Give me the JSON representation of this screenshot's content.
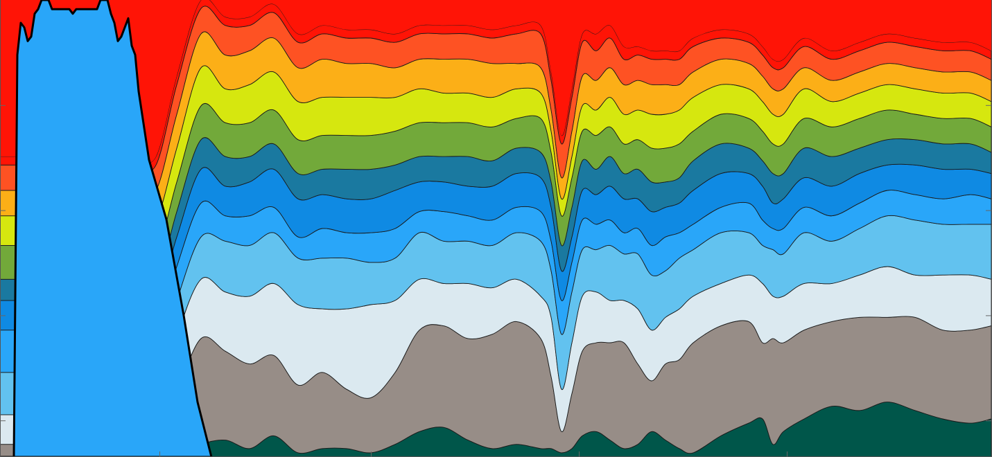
{
  "chart_data": {
    "type": "area",
    "stacked": true,
    "title": "",
    "xlabel": "",
    "ylabel": "",
    "xlim": [
      0,
      1430
    ],
    "ylim": [
      0,
      1
    ],
    "grid": false,
    "legend": "none",
    "x": [
      0,
      35,
      70,
      100,
      130,
      165,
      195,
      225,
      255,
      290,
      325,
      360,
      395,
      430,
      465,
      500,
      535,
      570,
      605,
      640,
      675,
      710,
      745,
      780,
      795,
      810,
      825,
      840,
      860,
      880,
      900,
      920,
      940,
      960,
      980,
      1000,
      1040,
      1080,
      1100,
      1115,
      1130,
      1160,
      1200,
      1240,
      1280,
      1320,
      1360,
      1400,
      1430
    ],
    "series": [
      {
        "name": "",
        "color": "#00564a",
        "values": [
          0,
          0,
          0,
          0,
          0,
          0,
          0,
          0,
          0,
          0.03,
          0.04,
          0.02,
          0.05,
          0.01,
          0.02,
          0.02,
          0.01,
          0.03,
          0.06,
          0.07,
          0.04,
          0.02,
          0.03,
          0.02,
          0.02,
          0.01,
          0.02,
          0.05,
          0.06,
          0.04,
          0.02,
          0.03,
          0.06,
          0.04,
          0.02,
          0.01,
          0.05,
          0.08,
          0.09,
          0.03,
          0.06,
          0.09,
          0.12,
          0.11,
          0.13,
          0.11,
          0.09,
          0.08,
          0.09
        ]
      },
      {
        "name": "",
        "color": "#978d87",
        "values": [
          0.03,
          0.03,
          0.03,
          0.03,
          0.03,
          0.03,
          0.03,
          0.02,
          0.15,
          0.25,
          0.21,
          0.2,
          0.19,
          0.16,
          0.18,
          0.14,
          0.13,
          0.17,
          0.24,
          0.24,
          0.24,
          0.27,
          0.29,
          0.26,
          0.17,
          0.05,
          0.13,
          0.2,
          0.21,
          0.23,
          0.25,
          0.19,
          0.12,
          0.18,
          0.21,
          0.26,
          0.26,
          0.24,
          0.18,
          0.25,
          0.21,
          0.21,
          0.2,
          0.22,
          0.2,
          0.22,
          0.21,
          0.22,
          0.22
        ]
      },
      {
        "name": "",
        "color": "#dbe9f0",
        "values": [
          0.07,
          0.07,
          0.07,
          0.07,
          0.07,
          0.07,
          0.07,
          0.05,
          0.13,
          0.14,
          0.14,
          0.16,
          0.17,
          0.19,
          0.15,
          0.19,
          0.22,
          0.17,
          0.12,
          0.1,
          0.13,
          0.11,
          0.1,
          0.1,
          0.14,
          0.1,
          0.12,
          0.13,
          0.12,
          0.1,
          0.1,
          0.13,
          0.12,
          0.11,
          0.12,
          0.11,
          0.1,
          0.11,
          0.14,
          0.1,
          0.11,
          0.11,
          0.09,
          0.1,
          0.12,
          0.1,
          0.13,
          0.13,
          0.11
        ]
      },
      {
        "name": "",
        "color": "#62c2ef",
        "values": [
          0.1,
          0.1,
          0.1,
          0.1,
          0.1,
          0.1,
          0.1,
          0.14,
          0.09,
          0.1,
          0.12,
          0.12,
          0.12,
          0.11,
          0.12,
          0.12,
          0.1,
          0.1,
          0.11,
          0.1,
          0.1,
          0.1,
          0.11,
          0.13,
          0.11,
          0.13,
          0.12,
          0.11,
          0.1,
          0.13,
          0.11,
          0.13,
          0.13,
          0.11,
          0.12,
          0.11,
          0.12,
          0.1,
          0.09,
          0.11,
          0.1,
          0.12,
          0.1,
          0.11,
          0.12,
          0.13,
          0.12,
          0.12,
          0.13
        ]
      },
      {
        "name": "",
        "color": "#29a6f9",
        "values": [
          0.1,
          0.1,
          0.1,
          0.1,
          0.1,
          0.1,
          0.1,
          0.08,
          0.08,
          0.08,
          0.06,
          0.07,
          0.06,
          0.05,
          0.07,
          0.06,
          0.07,
          0.07,
          0.05,
          0.07,
          0.06,
          0.06,
          0.06,
          0.07,
          0.07,
          0.08,
          0.07,
          0.07,
          0.06,
          0.06,
          0.05,
          0.06,
          0.07,
          0.08,
          0.06,
          0.06,
          0.06,
          0.07,
          0.06,
          0.05,
          0.06,
          0.06,
          0.06,
          0.06,
          0.06,
          0.06,
          0.06,
          0.07,
          0.06
        ]
      },
      {
        "name": "",
        "color": "#0f8ae3",
        "values": [
          0.07,
          0.07,
          0.07,
          0.07,
          0.07,
          0.07,
          0.07,
          0.07,
          0.07,
          0.08,
          0.07,
          0.08,
          0.09,
          0.09,
          0.08,
          0.08,
          0.08,
          0.09,
          0.07,
          0.07,
          0.07,
          0.08,
          0.08,
          0.08,
          0.08,
          0.07,
          0.06,
          0.07,
          0.07,
          0.08,
          0.08,
          0.07,
          0.08,
          0.07,
          0.07,
          0.08,
          0.08,
          0.07,
          0.08,
          0.06,
          0.07,
          0.07,
          0.07,
          0.07,
          0.06,
          0.07,
          0.07,
          0.06,
          0.06
        ]
      },
      {
        "name": "",
        "color": "#1a79a0",
        "values": [
          0.05,
          0.05,
          0.05,
          0.05,
          0.05,
          0.05,
          0.05,
          0.05,
          0.06,
          0.07,
          0.07,
          0.06,
          0.06,
          0.06,
          0.06,
          0.07,
          0.07,
          0.06,
          0.06,
          0.06,
          0.07,
          0.06,
          0.06,
          0.06,
          0.06,
          0.06,
          0.07,
          0.07,
          0.06,
          0.07,
          0.06,
          0.07,
          0.07,
          0.06,
          0.06,
          0.07,
          0.07,
          0.06,
          0.06,
          0.07,
          0.06,
          0.07,
          0.07,
          0.06,
          0.06,
          0.06,
          0.06,
          0.06,
          0.05
        ]
      },
      {
        "name": "",
        "color": "#72a93a",
        "values": [
          0.08,
          0.08,
          0.08,
          0.08,
          0.08,
          0.08,
          0.08,
          0.07,
          0.07,
          0.08,
          0.08,
          0.08,
          0.08,
          0.08,
          0.08,
          0.08,
          0.08,
          0.08,
          0.08,
          0.08,
          0.08,
          0.08,
          0.07,
          0.08,
          0.07,
          0.07,
          0.07,
          0.07,
          0.08,
          0.07,
          0.07,
          0.07,
          0.08,
          0.08,
          0.08,
          0.07,
          0.07,
          0.07,
          0.07,
          0.07,
          0.07,
          0.07,
          0.07,
          0.07,
          0.07,
          0.06,
          0.06,
          0.06,
          0.06
        ]
      },
      {
        "name": "",
        "color": "#d6e70f",
        "values": [
          0.07,
          0.07,
          0.07,
          0.07,
          0.07,
          0.07,
          0.07,
          0.08,
          0.08,
          0.09,
          0.08,
          0.09,
          0.09,
          0.09,
          0.09,
          0.09,
          0.09,
          0.08,
          0.08,
          0.07,
          0.07,
          0.07,
          0.07,
          0.06,
          0.05,
          0.04,
          0.05,
          0.06,
          0.06,
          0.07,
          0.07,
          0.07,
          0.08,
          0.08,
          0.08,
          0.08,
          0.07,
          0.07,
          0.07,
          0.07,
          0.07,
          0.07,
          0.06,
          0.06,
          0.06,
          0.06,
          0.06,
          0.06,
          0.06
        ]
      },
      {
        "name": "",
        "color": "#fcaf17",
        "values": [
          0.06,
          0.06,
          0.06,
          0.06,
          0.06,
          0.06,
          0.06,
          0.07,
          0.08,
          0.08,
          0.08,
          0.08,
          0.08,
          0.08,
          0.09,
          0.08,
          0.08,
          0.07,
          0.07,
          0.08,
          0.08,
          0.08,
          0.06,
          0.06,
          0.05,
          0.05,
          0.06,
          0.07,
          0.07,
          0.07,
          0.07,
          0.07,
          0.07,
          0.07,
          0.06,
          0.06,
          0.06,
          0.06,
          0.06,
          0.06,
          0.06,
          0.05,
          0.05,
          0.05,
          0.05,
          0.05,
          0.05,
          0.05,
          0.05
        ]
      },
      {
        "name": "",
        "color": "#fe5223",
        "values": [
          0.06,
          0.06,
          0.06,
          0.06,
          0.06,
          0.06,
          0.06,
          0.06,
          0.07,
          0.06,
          0.07,
          0.06,
          0.06,
          0.06,
          0.06,
          0.06,
          0.06,
          0.06,
          0.06,
          0.06,
          0.06,
          0.06,
          0.07,
          0.08,
          0.07,
          0.08,
          0.08,
          0.08,
          0.07,
          0.07,
          0.06,
          0.06,
          0.06,
          0.06,
          0.06,
          0.06,
          0.05,
          0.05,
          0.05,
          0.05,
          0.05,
          0.05,
          0.05,
          0.05,
          0.05,
          0.05,
          0.05,
          0.05,
          0.05
        ]
      },
      {
        "name": "",
        "color": "#ff1406",
        "values": [
          0.02,
          0.02,
          0.02,
          0.02,
          0.02,
          0.02,
          0.02,
          0.02,
          0.02,
          0.02,
          0.02,
          0.02,
          0.02,
          0.02,
          0.02,
          0.02,
          0.02,
          0.02,
          0.02,
          0.02,
          0.02,
          0.02,
          0.02,
          0.02,
          0.02,
          0.02,
          0.02,
          0.02,
          0.04,
          0.03,
          0.03,
          0.02,
          0.02,
          0.02,
          0.02,
          0.02,
          0.02,
          0.02,
          0.02,
          0.02,
          0.02,
          0.02,
          0.02,
          0.02,
          0.02,
          0.02,
          0.02,
          0.02,
          0.02
        ]
      }
    ],
    "overlay": {
      "name": "",
      "color": "#29a6f9",
      "x": [
        0,
        20,
        25,
        30,
        35,
        40,
        45,
        50,
        55,
        60,
        65,
        70,
        75,
        100,
        105,
        110,
        115,
        140,
        145,
        150,
        155,
        160,
        165,
        170,
        175,
        180,
        185,
        190,
        195,
        200,
        215,
        240,
        265,
        285,
        295,
        305
      ],
      "values": [
        0,
        0,
        0.88,
        0.95,
        0.94,
        0.91,
        0.92,
        0.97,
        0.98,
        1,
        1,
        1,
        0.98,
        0.98,
        0.97,
        0.98,
        0.98,
        0.98,
        1,
        1,
        1,
        0.97,
        0.95,
        0.91,
        0.92,
        0.94,
        0.96,
        0.9,
        0.88,
        0.8,
        0.65,
        0.52,
        0.31,
        0.12,
        0.06,
        0
      ]
    },
    "xticks": [
      230,
      535,
      835,
      1135
    ],
    "yticks": [
      0.08,
      0.31,
      0.54,
      0.77
    ]
  }
}
